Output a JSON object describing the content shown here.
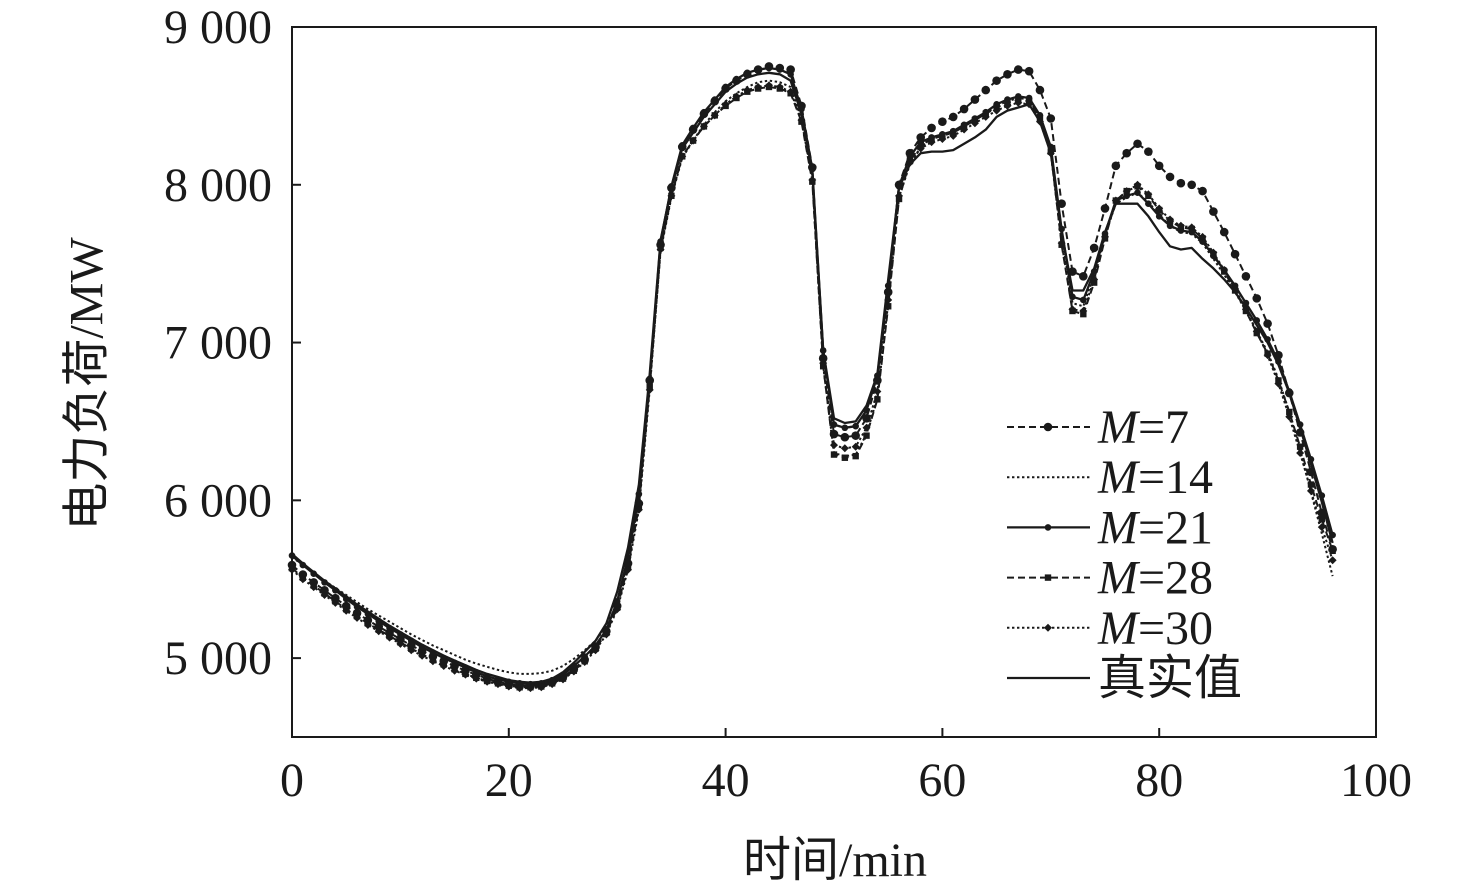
{
  "chart_data": {
    "type": "line",
    "xlabel": "时间/min",
    "ylabel": "电力负荷/MW",
    "xlim": [
      0,
      100
    ],
    "ylim": [
      4500,
      9000
    ],
    "x_ticks": [
      0,
      20,
      40,
      60,
      80,
      100
    ],
    "x_tick_labels": [
      "0",
      "20",
      "40",
      "60",
      "80",
      "100"
    ],
    "y_ticks": [
      5000,
      6000,
      7000,
      8000,
      9000
    ],
    "y_tick_labels": [
      "5 000",
      "6 000",
      "7 000",
      "8 000",
      "9 000"
    ],
    "grid": false,
    "legend": "lower right",
    "x": [
      0,
      1,
      2,
      3,
      4,
      5,
      6,
      7,
      8,
      9,
      10,
      11,
      12,
      13,
      14,
      15,
      16,
      17,
      18,
      19,
      20,
      21,
      22,
      23,
      24,
      25,
      26,
      27,
      28,
      29,
      30,
      31,
      32,
      33,
      34,
      35,
      36,
      37,
      38,
      39,
      40,
      41,
      42,
      43,
      44,
      45,
      46,
      47,
      48,
      49,
      50,
      51,
      52,
      53,
      54,
      55,
      56,
      57,
      58,
      59,
      60,
      61,
      62,
      63,
      64,
      65,
      66,
      67,
      68,
      69,
      70,
      71,
      72,
      73,
      74,
      75,
      76,
      77,
      78,
      79,
      80,
      81,
      82,
      83,
      84,
      85,
      86,
      87,
      88,
      89,
      90,
      91,
      92,
      93,
      94,
      95,
      96
    ],
    "series": [
      {
        "name": "M=7",
        "line": "dashed",
        "marker": "circle",
        "color": "#1a1a1a",
        "values": [
          5590,
          5530,
          5480,
          5430,
          5380,
          5330,
          5285,
          5240,
          5200,
          5160,
          5120,
          5080,
          5045,
          5010,
          4980,
          4950,
          4920,
          4895,
          4870,
          4850,
          4835,
          4825,
          4825,
          4830,
          4850,
          4880,
          4930,
          4990,
          5070,
          5170,
          5330,
          5600,
          5980,
          6760,
          7620,
          7980,
          8240,
          8350,
          8450,
          8530,
          8610,
          8660,
          8700,
          8730,
          8750,
          8740,
          8730,
          8500,
          8110,
          6900,
          6420,
          6400,
          6410,
          6520,
          6760,
          7320,
          8000,
          8200,
          8300,
          8360,
          8400,
          8430,
          8480,
          8540,
          8600,
          8660,
          8700,
          8730,
          8720,
          8600,
          8420,
          7880,
          7450,
          7420,
          7600,
          7850,
          8120,
          8200,
          8260,
          8210,
          8120,
          8050,
          8010,
          8000,
          7960,
          7830,
          7700,
          7560,
          7420,
          7280,
          7120,
          6920,
          6680,
          6430,
          6180,
          5920,
          5690
        ]
      },
      {
        "name": "M=14",
        "line": "dotted",
        "marker": "none",
        "color": "#1a1a1a",
        "values": [
          5640,
          5590,
          5540,
          5490,
          5445,
          5400,
          5355,
          5310,
          5270,
          5230,
          5190,
          5150,
          5115,
          5080,
          5050,
          5020,
          4990,
          4965,
          4945,
          4925,
          4910,
          4900,
          4900,
          4905,
          4920,
          4950,
          4995,
          5050,
          5110,
          5200,
          5350,
          5620,
          6000,
          6720,
          7580,
          7920,
          8170,
          8280,
          8380,
          8460,
          8530,
          8580,
          8620,
          8650,
          8660,
          8650,
          8620,
          8420,
          8050,
          6850,
          6300,
          6280,
          6290,
          6420,
          6650,
          7250,
          7920,
          8130,
          8240,
          8290,
          8320,
          8340,
          8370,
          8410,
          8450,
          8500,
          8530,
          8550,
          8540,
          8430,
          8230,
          7680,
          7250,
          7230,
          7430,
          7680,
          7880,
          7920,
          7950,
          7890,
          7810,
          7740,
          7700,
          7690,
          7630,
          7530,
          7430,
          7320,
          7200,
          7070,
          6940,
          6770,
          6560,
          6320,
          6050,
          5790,
          5520
        ]
      },
      {
        "name": "M=21",
        "line": "solid",
        "marker": "dot",
        "color": "#1a1a1a",
        "values": [
          5650,
          5590,
          5535,
          5480,
          5430,
          5375,
          5325,
          5280,
          5235,
          5190,
          5150,
          5110,
          5070,
          5035,
          5000,
          4970,
          4940,
          4910,
          4885,
          4865,
          4850,
          4840,
          4835,
          4840,
          4860,
          4895,
          4950,
          5010,
          5080,
          5180,
          5360,
          5640,
          6040,
          6770,
          7640,
          7990,
          8250,
          8360,
          8460,
          8540,
          8620,
          8670,
          8710,
          8730,
          8740,
          8730,
          8700,
          8480,
          8100,
          6950,
          6480,
          6460,
          6470,
          6570,
          6790,
          7360,
          7990,
          8180,
          8270,
          8300,
          8320,
          8340,
          8380,
          8420,
          8460,
          8510,
          8540,
          8560,
          8550,
          8440,
          8240,
          7720,
          7290,
          7270,
          7450,
          7690,
          7900,
          7930,
          7950,
          7880,
          7800,
          7740,
          7710,
          7700,
          7640,
          7550,
          7460,
          7360,
          7250,
          7140,
          7020,
          6880,
          6690,
          6480,
          6260,
          6030,
          5780
        ]
      },
      {
        "name": "M=28",
        "line": "dashed",
        "marker": "square",
        "color": "#1a1a1a",
        "values": [
          5570,
          5510,
          5460,
          5410,
          5360,
          5310,
          5265,
          5220,
          5180,
          5140,
          5100,
          5060,
          5025,
          4990,
          4960,
          4930,
          4900,
          4875,
          4855,
          4840,
          4825,
          4815,
          4815,
          4820,
          4840,
          4870,
          4920,
          4980,
          5060,
          5160,
          5320,
          5580,
          5960,
          6720,
          7600,
          7930,
          8180,
          8280,
          8370,
          8440,
          8500,
          8550,
          8590,
          8610,
          8620,
          8610,
          8580,
          8400,
          8020,
          6850,
          6290,
          6270,
          6280,
          6410,
          6640,
          7230,
          7910,
          8150,
          8250,
          8290,
          8310,
          8330,
          8370,
          8410,
          8450,
          8490,
          8520,
          8540,
          8530,
          8420,
          8210,
          7620,
          7200,
          7180,
          7380,
          7660,
          7900,
          7960,
          7990,
          7930,
          7840,
          7770,
          7730,
          7720,
          7660,
          7560,
          7450,
          7330,
          7200,
          7060,
          6930,
          6760,
          6560,
          6340,
          6100,
          5880,
          5680
        ]
      },
      {
        "name": "M=30",
        "line": "dotted",
        "marker": "diamond",
        "color": "#1a1a1a",
        "values": [
          5560,
          5500,
          5450,
          5400,
          5350,
          5300,
          5255,
          5210,
          5170,
          5130,
          5090,
          5050,
          5015,
          4980,
          4950,
          4920,
          4895,
          4870,
          4850,
          4835,
          4820,
          4810,
          4810,
          4815,
          4835,
          4865,
          4915,
          4975,
          5050,
          5150,
          5310,
          5560,
          5940,
          6700,
          7590,
          7930,
          8180,
          8280,
          8370,
          8440,
          8510,
          8560,
          8600,
          8620,
          8630,
          8620,
          8590,
          8410,
          8030,
          6870,
          6350,
          6330,
          6340,
          6460,
          6690,
          7270,
          7930,
          8140,
          8230,
          8270,
          8290,
          8310,
          8350,
          8390,
          8430,
          8470,
          8500,
          8520,
          8510,
          8400,
          8200,
          7630,
          7210,
          7200,
          7400,
          7670,
          7900,
          7960,
          8000,
          7940,
          7850,
          7780,
          7740,
          7730,
          7670,
          7570,
          7460,
          7340,
          7210,
          7070,
          6920,
          6740,
          6530,
          6300,
          6060,
          5830,
          5620
        ]
      },
      {
        "name": "真实值",
        "line": "solid",
        "marker": "none",
        "color": "#1a1a1a",
        "values": [
          5660,
          5600,
          5545,
          5490,
          5440,
          5390,
          5340,
          5295,
          5250,
          5205,
          5165,
          5125,
          5085,
          5050,
          5015,
          4985,
          4955,
          4925,
          4900,
          4880,
          4860,
          4850,
          4845,
          4850,
          4870,
          4910,
          4970,
          5040,
          5110,
          5220,
          5420,
          5700,
          6100,
          6800,
          7650,
          7980,
          8230,
          8330,
          8430,
          8510,
          8590,
          8640,
          8680,
          8700,
          8710,
          8700,
          8660,
          8450,
          8080,
          6950,
          6520,
          6490,
          6500,
          6600,
          6800,
          7400,
          7980,
          8130,
          8200,
          8210,
          8210,
          8220,
          8260,
          8300,
          8350,
          8430,
          8470,
          8490,
          8510,
          8400,
          8200,
          7700,
          7330,
          7330,
          7470,
          7700,
          7880,
          7880,
          7880,
          7800,
          7700,
          7610,
          7590,
          7600,
          7530,
          7470,
          7400,
          7320,
          7220,
          7110,
          7000,
          6860,
          6680,
          6460,
          6230,
          5990,
          5730
        ]
      }
    ]
  }
}
